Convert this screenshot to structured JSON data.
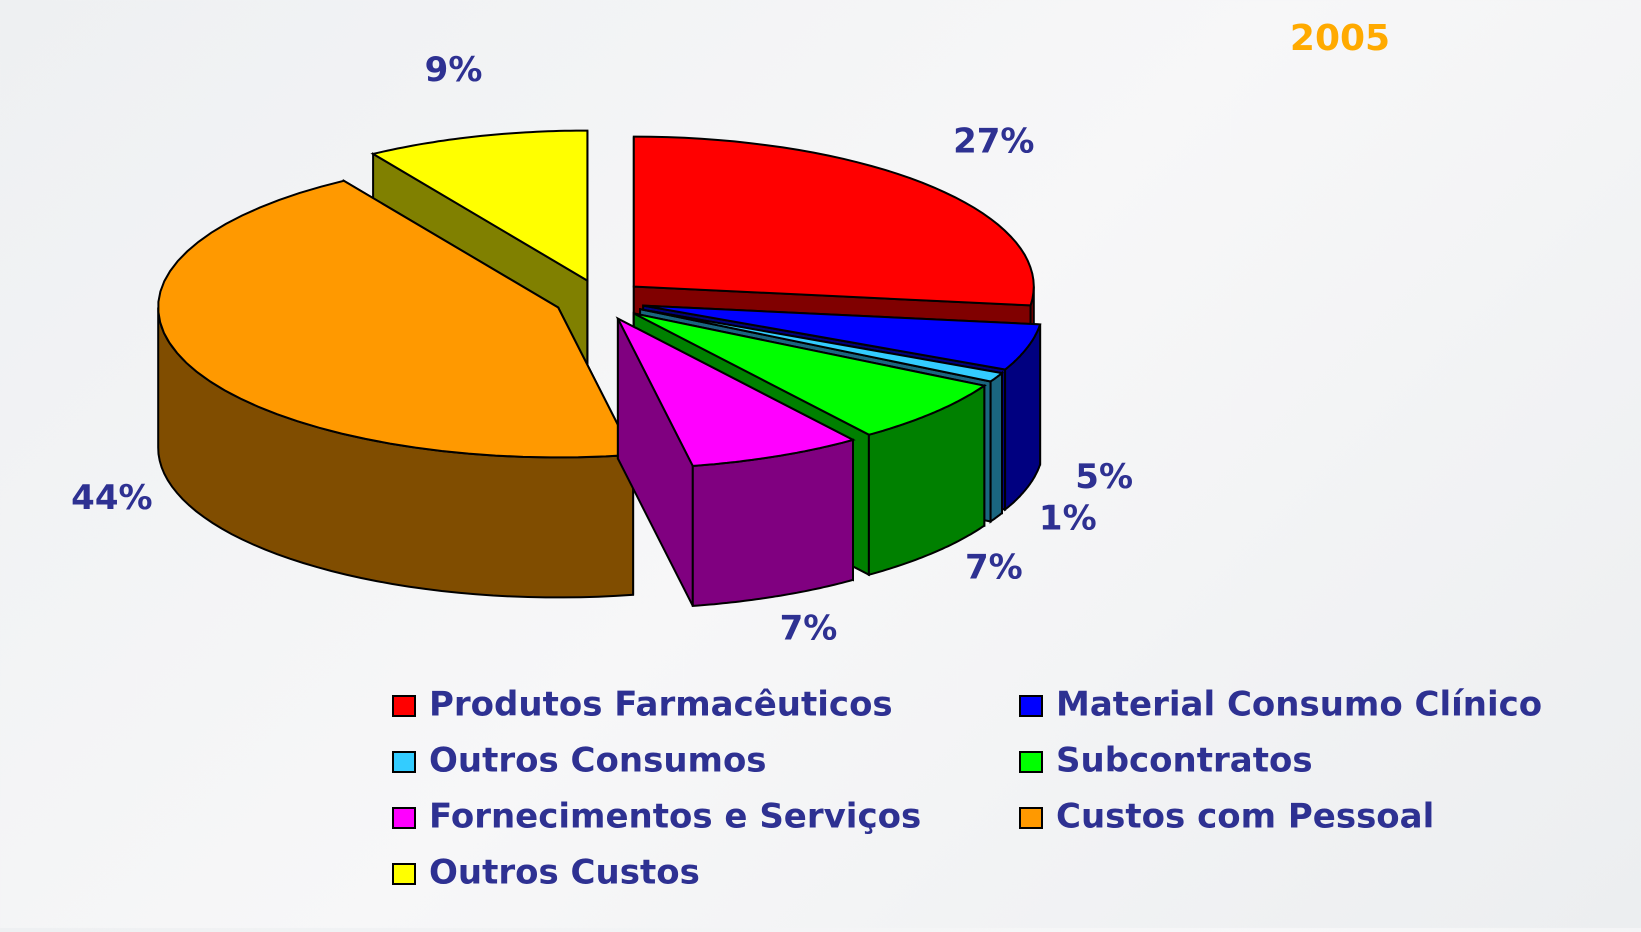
{
  "chart_data": {
    "type": "pie",
    "title": "2005",
    "categories": [
      "Produtos Farmacêuticos",
      "Material Consumo Clínico",
      "Outros Consumos",
      "Subcontratos",
      "Fornecimentos e Serviços",
      "Custos com Pessoal",
      "Outros Custos"
    ],
    "values": [
      27,
      5,
      1,
      7,
      7,
      44,
      9
    ],
    "value_labels": [
      "27%",
      "5%",
      "1%",
      "7%",
      "7%",
      "44%",
      "9%"
    ],
    "colors": [
      "#ff0000",
      "#0000ff",
      "#33ccff",
      "#00ff00",
      "#ff00ff",
      "#ff9900",
      "#ffff00"
    ],
    "legend": "bottom"
  }
}
